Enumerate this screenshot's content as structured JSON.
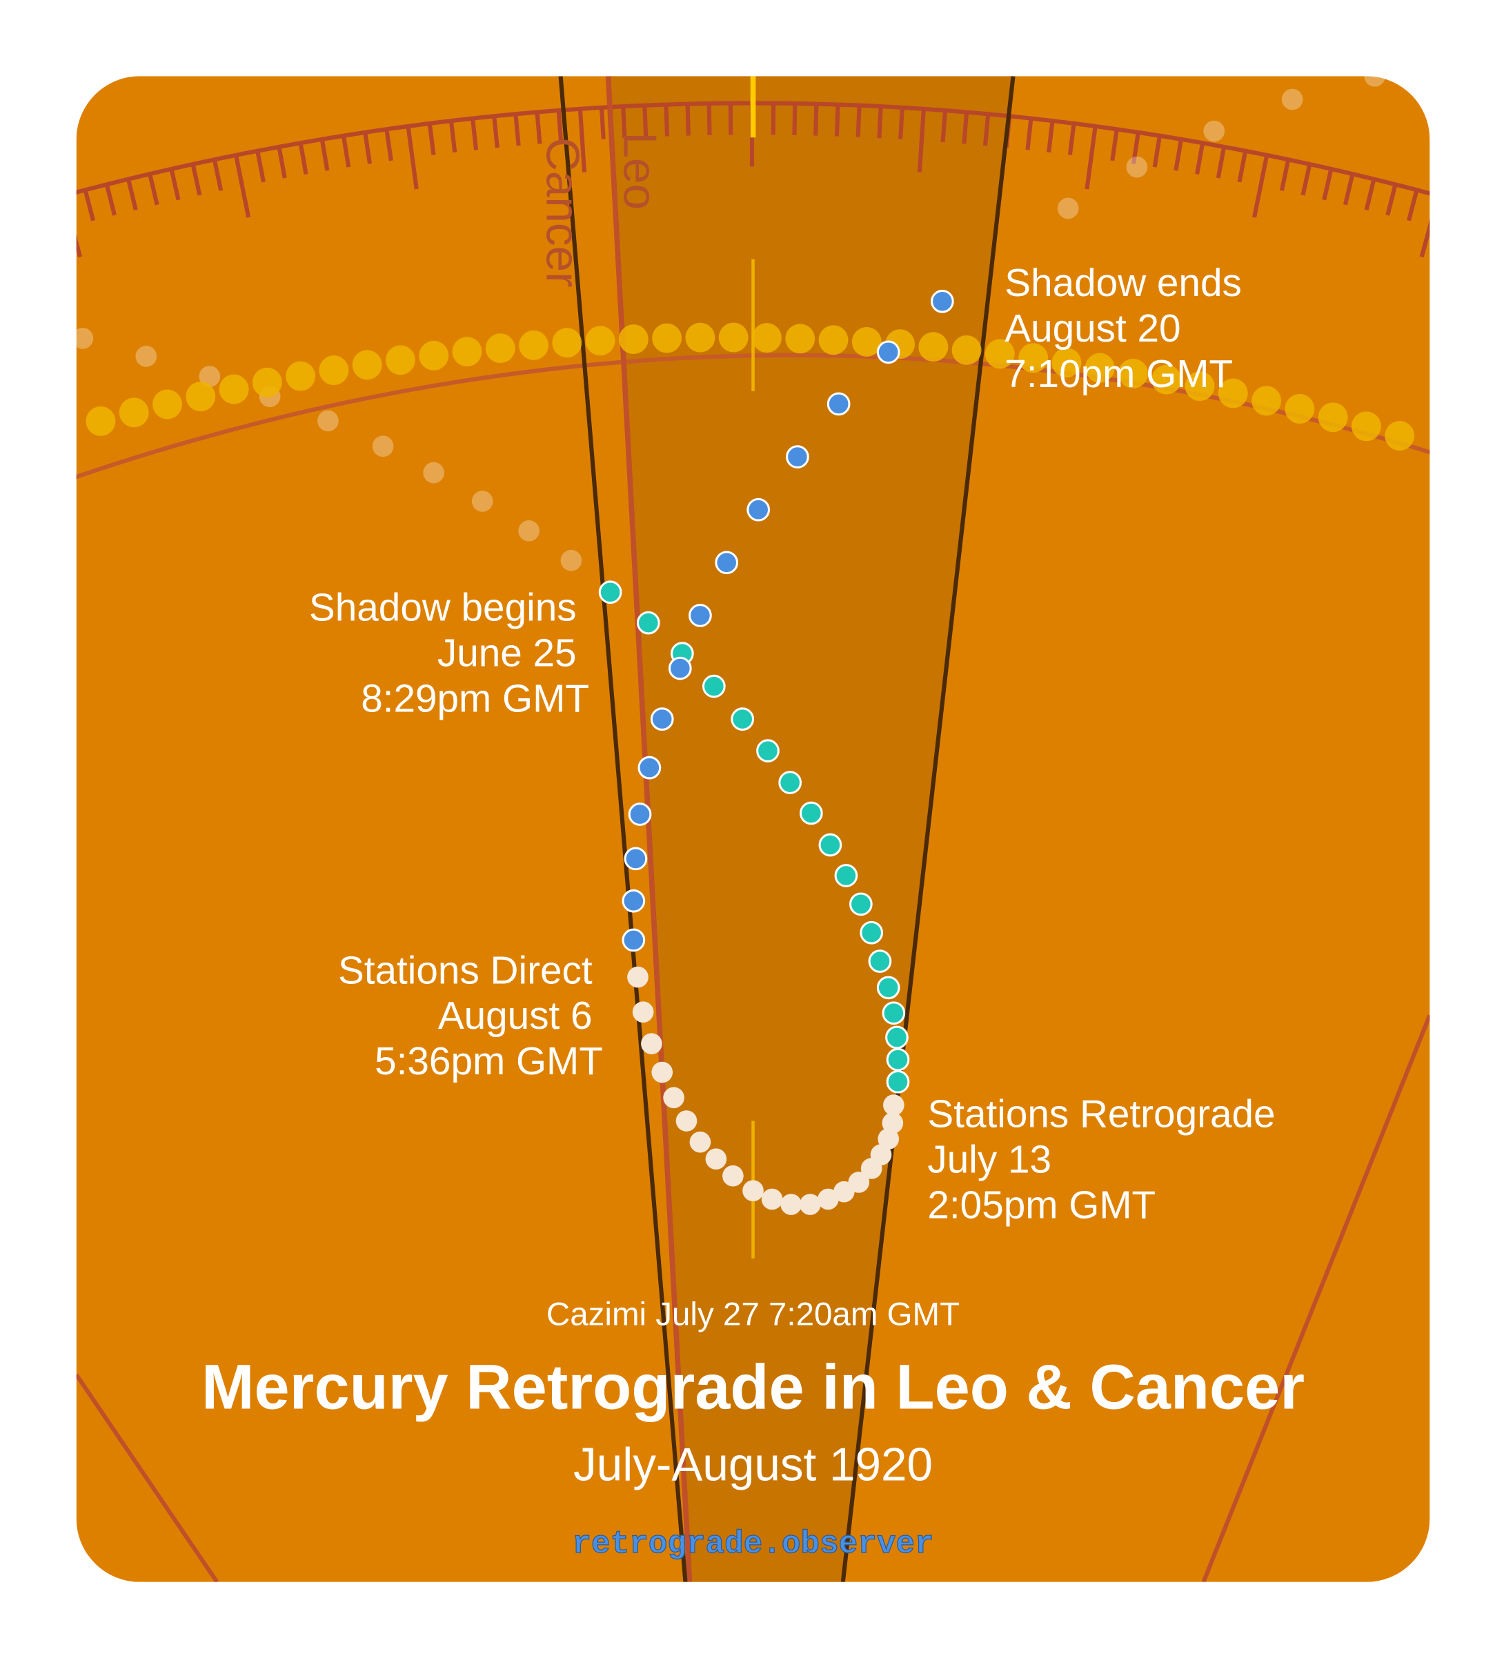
{
  "header": {
    "title": "Mercury Retrograde in Leo & Cancer",
    "subtitle": "July-August 1920"
  },
  "signs": [
    "Leo",
    "Cancer"
  ],
  "events": {
    "shadow_ends": [
      "Shadow ends",
      "August 20",
      "7:10pm GMT"
    ],
    "shadow_begins": [
      "Shadow begins",
      "June 25",
      "8:29pm GMT"
    ],
    "stations_direct": [
      "Stations Direct",
      "August 6",
      "5:36pm GMT"
    ],
    "stations_retrograde": [
      "Stations Retrograde",
      "July 13",
      "2:05pm GMT"
    ]
  },
  "cazimi": "Cazimi July 27 7:20am GMT",
  "footer": {
    "site": "retrograde.observer"
  }
}
